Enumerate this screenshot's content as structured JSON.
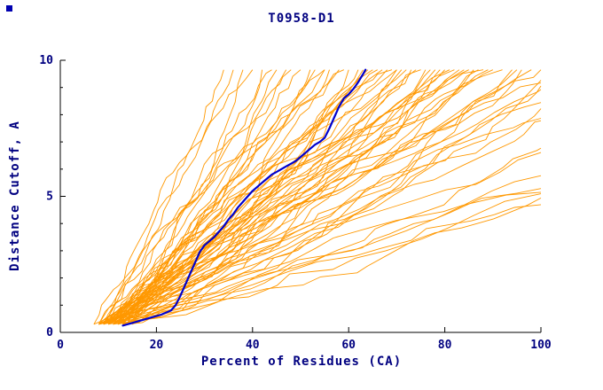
{
  "chart_data": {
    "type": "line",
    "title": "T0958-D1",
    "xlabel": "Percent of Residues (CA)",
    "ylabel": "Distance Cutoff, A",
    "xlim": [
      0,
      100
    ],
    "ylim": [
      0,
      10
    ],
    "x_ticks": [
      0,
      20,
      40,
      60,
      80,
      100
    ],
    "y_ticks": [
      0,
      5,
      10
    ],
    "y_minor_ticks": [
      1,
      2,
      3,
      4,
      6,
      7,
      8,
      9
    ],
    "grid": false,
    "legend": null,
    "colors": {
      "prediction": "#ff9800",
      "highlight": "#0000cc",
      "text": "#000080",
      "axis": "#000000",
      "background": "#ffffff",
      "corner_marker": "#0000b0"
    },
    "highlight_series": {
      "name": "highlighted-model",
      "points": [
        [
          13,
          0.25
        ],
        [
          15,
          0.35
        ],
        [
          17,
          0.45
        ],
        [
          19,
          0.55
        ],
        [
          21,
          0.65
        ],
        [
          23,
          0.8
        ],
        [
          24,
          1.0
        ],
        [
          25,
          1.35
        ],
        [
          26,
          1.75
        ],
        [
          27,
          2.15
        ],
        [
          28,
          2.55
        ],
        [
          29,
          2.95
        ],
        [
          30,
          3.2
        ],
        [
          31,
          3.35
        ],
        [
          32,
          3.5
        ],
        [
          33,
          3.7
        ],
        [
          34,
          3.9
        ],
        [
          35,
          4.15
        ],
        [
          36,
          4.35
        ],
        [
          37,
          4.6
        ],
        [
          38,
          4.8
        ],
        [
          39,
          5.0
        ],
        [
          40,
          5.2
        ],
        [
          41,
          5.35
        ],
        [
          42,
          5.5
        ],
        [
          43,
          5.65
        ],
        [
          44,
          5.8
        ],
        [
          45,
          5.9
        ],
        [
          46,
          6.0
        ],
        [
          47,
          6.1
        ],
        [
          48,
          6.2
        ],
        [
          49,
          6.3
        ],
        [
          50,
          6.45
        ],
        [
          51,
          6.6
        ],
        [
          52,
          6.75
        ],
        [
          53,
          6.9
        ],
        [
          54,
          7.0
        ],
        [
          55,
          7.15
        ],
        [
          56,
          7.5
        ],
        [
          57,
          7.9
        ],
        [
          58,
          8.3
        ],
        [
          59,
          8.6
        ],
        [
          60,
          8.75
        ],
        [
          61,
          8.95
        ],
        [
          62,
          9.2
        ],
        [
          63,
          9.5
        ],
        [
          63.5,
          9.65
        ]
      ]
    },
    "prediction_curves": {
      "name": "server-model-curves",
      "y_start": 0.3,
      "y_top": 9.65,
      "params": [
        [
          9,
          34,
          1.1
        ],
        [
          8,
          36,
          0.95
        ],
        [
          10,
          38,
          1.2
        ],
        [
          7,
          40,
          1.0
        ],
        [
          11,
          42,
          1.15
        ],
        [
          9,
          44,
          0.9
        ],
        [
          12,
          45,
          1.05
        ],
        [
          8,
          47,
          1.25
        ],
        [
          10,
          48,
          0.95
        ],
        [
          13,
          50,
          1.1
        ],
        [
          9,
          52,
          1.0
        ],
        [
          11,
          53,
          1.2
        ],
        [
          8,
          55,
          0.9
        ],
        [
          12,
          56,
          1.05
        ],
        [
          10,
          58,
          1.15
        ],
        [
          14,
          59,
          0.95
        ],
        [
          9,
          60,
          1.1
        ],
        [
          11,
          62,
          1.0
        ],
        [
          8,
          63,
          1.2
        ],
        [
          13,
          64,
          0.9
        ],
        [
          10,
          65,
          1.05
        ],
        [
          12,
          66,
          1.15
        ],
        [
          9,
          67,
          0.95
        ],
        [
          14,
          68,
          1.1
        ],
        [
          8,
          69,
          1.0
        ],
        [
          11,
          70,
          1.2
        ],
        [
          10,
          71,
          0.9
        ],
        [
          13,
          72,
          1.05
        ],
        [
          9,
          73,
          1.15
        ],
        [
          12,
          74,
          0.95
        ],
        [
          8,
          75,
          1.1
        ],
        [
          14,
          76,
          1.0
        ],
        [
          10,
          77,
          1.2
        ],
        [
          11,
          78,
          0.9
        ],
        [
          9,
          79,
          1.05
        ],
        [
          13,
          80,
          1.15
        ],
        [
          8,
          81,
          0.95
        ],
        [
          12,
          82,
          1.1
        ],
        [
          10,
          83,
          1.0
        ],
        [
          14,
          84,
          1.2
        ],
        [
          9,
          85,
          0.9
        ],
        [
          11,
          86,
          1.05
        ],
        [
          8,
          87,
          1.15
        ],
        [
          13,
          88,
          0.95
        ],
        [
          10,
          89,
          1.1
        ],
        [
          12,
          90,
          1.0
        ],
        [
          9,
          92,
          1.2
        ],
        [
          14,
          94,
          0.9
        ],
        [
          8,
          96,
          1.05
        ],
        [
          11,
          98,
          1.15
        ],
        [
          10,
          100,
          0.95
        ],
        [
          13,
          102,
          1.1
        ],
        [
          9,
          104,
          1.0
        ],
        [
          12,
          106,
          1.2
        ],
        [
          8,
          108,
          0.9
        ],
        [
          14,
          112,
          1.05
        ],
        [
          10,
          116,
          1.15
        ],
        [
          11,
          120,
          0.95
        ],
        [
          9,
          126,
          1.1
        ],
        [
          13,
          132,
          1.0
        ],
        [
          8,
          140,
          1.2
        ],
        [
          12,
          150,
          0.9
        ],
        [
          10,
          162,
          1.05
        ],
        [
          11,
          175,
          1.0
        ],
        [
          9,
          190,
          1.1
        ],
        [
          13,
          205,
          0.95
        ],
        [
          8,
          150,
          1.3
        ],
        [
          15,
          70,
          0.85
        ],
        [
          15,
          95,
          1.3
        ],
        [
          7,
          55,
          1.3
        ]
      ]
    }
  }
}
